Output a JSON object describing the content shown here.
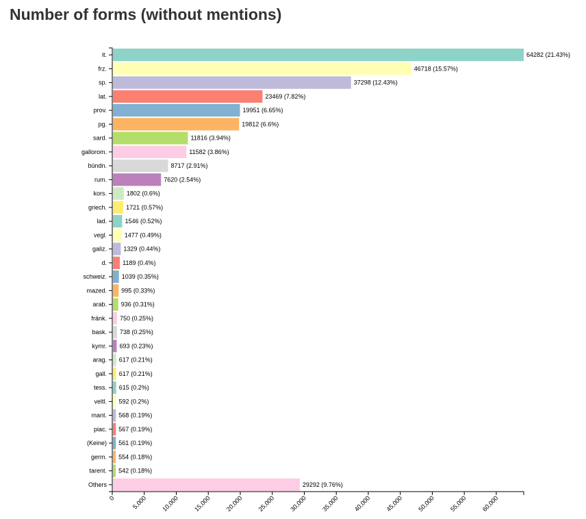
{
  "page": {
    "title": "Number of forms (without mentions)"
  },
  "colors": [
    "#8dd3c7",
    "#ffffb3",
    "#bebada",
    "#fb8072",
    "#80b1d3",
    "#fdb462",
    "#b3de69",
    "#fccde5",
    "#d9d9d9",
    "#bc80bd",
    "#ccebc5",
    "#ffed6f"
  ],
  "chart_data": {
    "type": "bar",
    "orientation": "horizontal",
    "title": "Number of forms (without mentions)",
    "xlabel": "",
    "ylabel": "",
    "xlim": [
      0,
      64282
    ],
    "x_ticks": [
      0,
      5000,
      10000,
      15000,
      20000,
      25000,
      30000,
      35000,
      40000,
      45000,
      50000,
      55000,
      60000
    ],
    "x_tick_labels": [
      "0",
      "5,000",
      "10,000",
      "15,000",
      "20,000",
      "25,000",
      "30,000",
      "35,000",
      "40,000",
      "45,000",
      "50,000",
      "55,000",
      "60,000"
    ],
    "categories": [
      "it.",
      "frz.",
      "sp.",
      "lat.",
      "prov.",
      "pg.",
      "sard.",
      "gallorom.",
      "bündn.",
      "rum.",
      "kors.",
      "griech.",
      "lad.",
      "vegl.",
      "galiz.",
      "d.",
      "schweiz.",
      "mazed.",
      "arab.",
      "fränk.",
      "bask.",
      "kymr.",
      "arag.",
      "gall.",
      "tess.",
      "veltl.",
      "mant.",
      "piac.",
      "(Keine)",
      "germ.",
      "tarent.",
      "Others"
    ],
    "values": [
      64282,
      46718,
      37298,
      23469,
      19951,
      19812,
      11816,
      11582,
      8717,
      7620,
      1802,
      1721,
      1546,
      1477,
      1329,
      1189,
      1039,
      995,
      936,
      750,
      738,
      693,
      617,
      617,
      615,
      592,
      568,
      567,
      561,
      554,
      542,
      29292
    ],
    "labels": [
      "64282 (21.43%)",
      "46718 (15.57%)",
      "37298 (12.43%)",
      "23469 (7.82%)",
      "19951 (6.65%)",
      "19812 (6.6%)",
      "11816 (3.94%)",
      "11582 (3.86%)",
      "8717 (2.91%)",
      "7620 (2.54%)",
      "1802 (0.6%)",
      "1721 (0.57%)",
      "1546 (0.52%)",
      "1477 (0.49%)",
      "1329 (0.44%)",
      "1189 (0.4%)",
      "1039 (0.35%)",
      "995 (0.33%)",
      "936 (0.31%)",
      "750 (0.25%)",
      "738 (0.25%)",
      "693 (0.23%)",
      "617 (0.21%)",
      "617 (0.21%)",
      "615 (0.2%)",
      "592 (0.2%)",
      "568 (0.19%)",
      "567 (0.19%)",
      "561 (0.19%)",
      "554 (0.18%)",
      "542 (0.18%)",
      "29292 (9.76%)"
    ],
    "grid": false,
    "legend": "none"
  }
}
